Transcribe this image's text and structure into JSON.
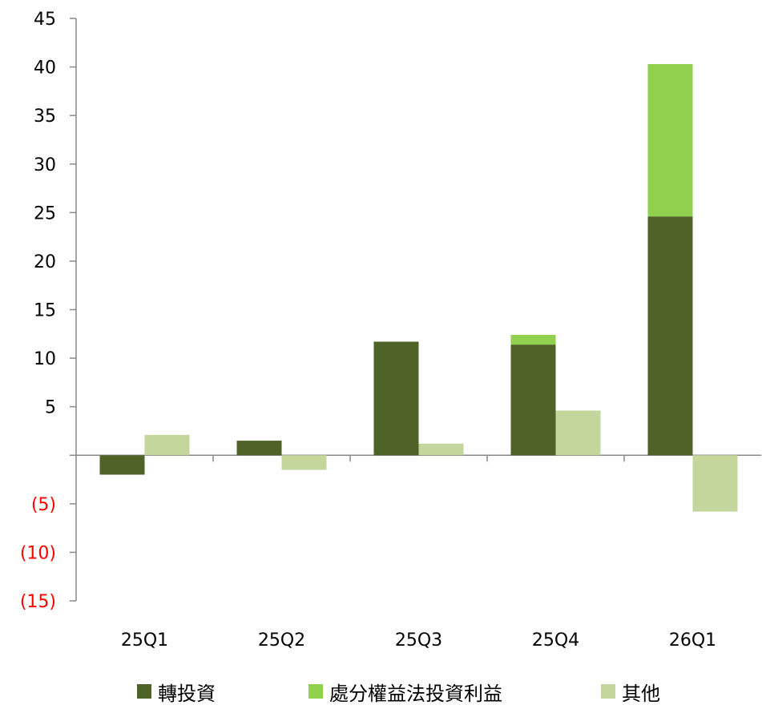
{
  "chart_data": {
    "type": "bar",
    "stacked": true,
    "categories": [
      "25Q1",
      "25Q2",
      "25Q3",
      "25Q4",
      "26Q1"
    ],
    "series": [
      {
        "name": "轉投資",
        "values": [
          -2.0,
          1.5,
          11.7,
          11.4,
          24.6
        ],
        "color": "#4f6228",
        "group": "main"
      },
      {
        "name": "處分權益法投資利益",
        "values": [
          0,
          0,
          0,
          1.0,
          15.7
        ],
        "color": "#92d050",
        "group": "main"
      },
      {
        "name": "其他",
        "values": [
          2.1,
          -1.5,
          1.2,
          4.6,
          -5.8
        ],
        "color": "#c3d69b",
        "group": "other"
      }
    ],
    "ylim": [
      -15,
      45
    ],
    "yticks": [
      45,
      40,
      35,
      30,
      25,
      20,
      15,
      10,
      5,
      0,
      -5,
      -10,
      -15
    ],
    "ytick_labels": [
      "45",
      "40",
      "35",
      "30",
      "25",
      "20",
      "15",
      "10",
      "5",
      "",
      "(5)",
      "(10)",
      "(15)"
    ],
    "negative_label_color": "#ff0000",
    "grid": false,
    "legend_position": "bottom"
  }
}
